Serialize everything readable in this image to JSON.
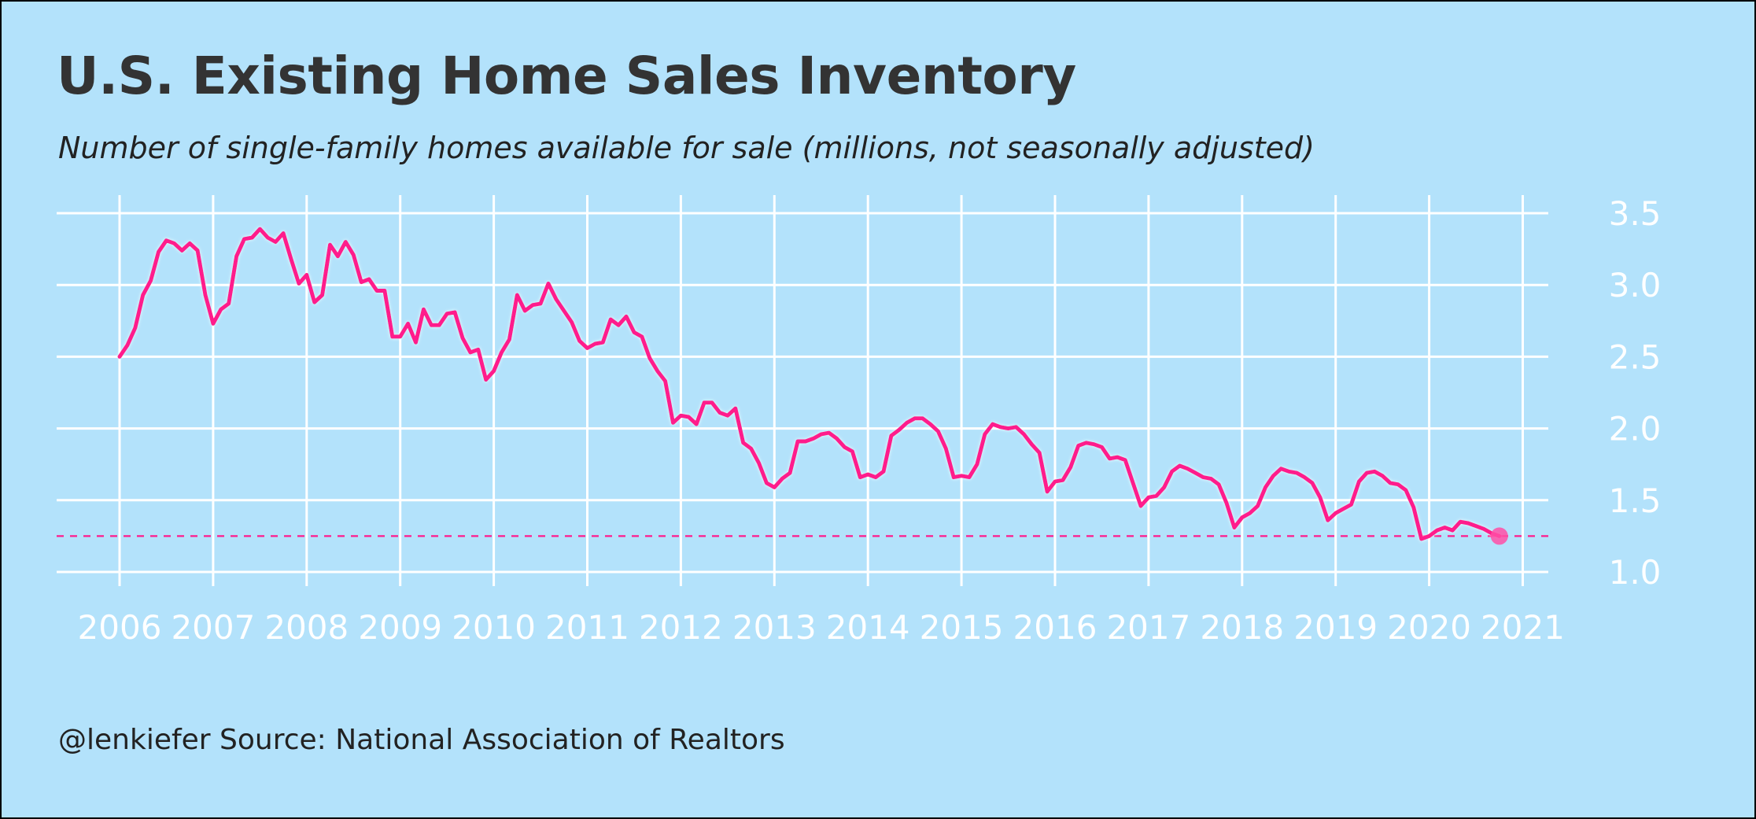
{
  "title": "U.S. Existing Home Sales Inventory",
  "subtitle": "Number of single-family homes available for sale (millions, not seasonally adjusted)",
  "caption": "@lenkiefer Source: National Association of Realtors",
  "colors": {
    "background": "#b3e2fb",
    "line": "#ff1a8c",
    "grid": "#ffffff",
    "reference_line": "#ff1a8c",
    "end_point": "#ff4fa6"
  },
  "chart_data": {
    "type": "line",
    "title": "U.S. Existing Home Sales Inventory",
    "subtitle": "Number of single-family homes available for sale (millions, not seasonally adjusted)",
    "xlabel": "",
    "ylabel": "",
    "xlim": [
      2006,
      2021.2
    ],
    "ylim": [
      1.0,
      3.5
    ],
    "x_ticks": [
      "2006",
      "2007",
      "2008",
      "2009",
      "2010",
      "2011",
      "2012",
      "2013",
      "2014",
      "2015",
      "2016",
      "2017",
      "2018",
      "2019",
      "2020",
      "2021"
    ],
    "y_ticks": [
      "1.0",
      "1.5",
      "2.0",
      "2.5",
      "3.0",
      "3.5"
    ],
    "y_axis_position": "right",
    "grid": true,
    "legend": "none",
    "reference_line": {
      "y": 1.25,
      "style": "dashed"
    },
    "highlight_last_point": true,
    "series": [
      {
        "start": "2006-01",
        "frequency": "monthly",
        "values": [
          2.5,
          2.58,
          2.7,
          2.93,
          3.03,
          3.23,
          3.31,
          3.29,
          3.24,
          3.29,
          3.24,
          2.93,
          2.73,
          2.83,
          2.87,
          3.2,
          3.32,
          3.33,
          3.39,
          3.33,
          3.3,
          3.36,
          3.18,
          3.01,
          3.07,
          2.88,
          2.93,
          3.28,
          3.2,
          3.3,
          3.21,
          3.02,
          3.04,
          2.96,
          2.96,
          2.64,
          2.64,
          2.73,
          2.6,
          2.83,
          2.72,
          2.72,
          2.8,
          2.81,
          2.63,
          2.53,
          2.55,
          2.34,
          2.4,
          2.53,
          2.62,
          2.93,
          2.82,
          2.86,
          2.87,
          3.01,
          2.9,
          2.82,
          2.74,
          2.61,
          2.56,
          2.59,
          2.6,
          2.76,
          2.72,
          2.78,
          2.67,
          2.64,
          2.49,
          2.4,
          2.33,
          2.04,
          2.09,
          2.08,
          2.03,
          2.18,
          2.18,
          2.11,
          2.09,
          2.14,
          1.9,
          1.86,
          1.76,
          1.62,
          1.59,
          1.65,
          1.69,
          1.91,
          1.91,
          1.93,
          1.96,
          1.97,
          1.93,
          1.87,
          1.84,
          1.66,
          1.68,
          1.66,
          1.7,
          1.95,
          1.99,
          2.04,
          2.07,
          2.07,
          2.03,
          1.98,
          1.86,
          1.66,
          1.67,
          1.66,
          1.75,
          1.96,
          2.03,
          2.01,
          2.0,
          2.01,
          1.96,
          1.89,
          1.83,
          1.56,
          1.63,
          1.64,
          1.73,
          1.88,
          1.9,
          1.89,
          1.87,
          1.79,
          1.8,
          1.78,
          1.62,
          1.46,
          1.52,
          1.53,
          1.59,
          1.7,
          1.74,
          1.72,
          1.69,
          1.66,
          1.65,
          1.61,
          1.48,
          1.31,
          1.38,
          1.41,
          1.46,
          1.59,
          1.67,
          1.72,
          1.7,
          1.69,
          1.66,
          1.62,
          1.52,
          1.36,
          1.41,
          1.44,
          1.47,
          1.63,
          1.69,
          1.7,
          1.67,
          1.62,
          1.61,
          1.57,
          1.45,
          1.23,
          1.25,
          1.29,
          1.31,
          1.29,
          1.35,
          1.34,
          1.32,
          1.3,
          1.27,
          1.25
        ]
      }
    ]
  }
}
